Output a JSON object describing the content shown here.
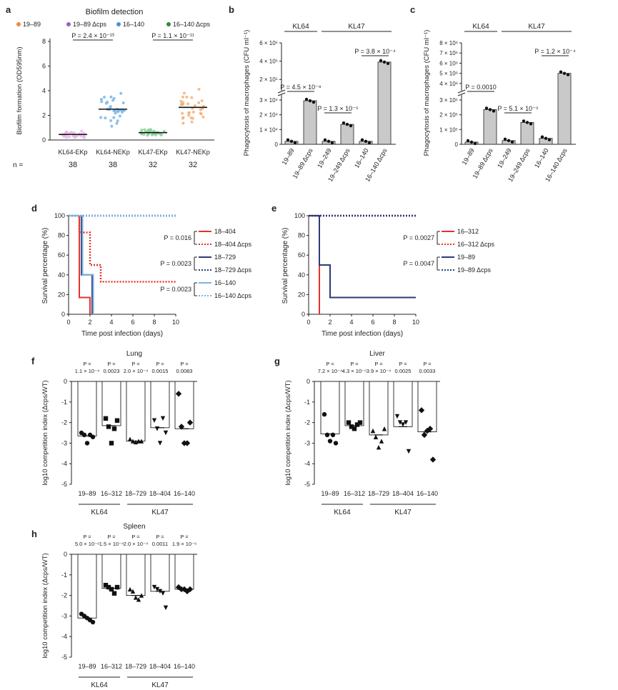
{
  "panels": {
    "a": {
      "letter": "a",
      "title": "Biofilm detection",
      "legend": [
        {
          "label": "19–89",
          "color": "#f08a3c"
        },
        {
          "label": "19–89 Δcps",
          "color": "#a05cc8"
        },
        {
          "label": "16–140",
          "color": "#4f8fd8"
        },
        {
          "label": "16–140 Δcps",
          "color": "#2e8b3e"
        }
      ],
      "ylabel": "Biofilm formation (OD595nm)",
      "yticks": [
        "0",
        "2",
        "4",
        "6",
        "8"
      ],
      "ylim": [
        0,
        8
      ],
      "categories": [
        "KL64-EKp",
        "KL64-NEKp",
        "KL47-EKp",
        "KL47-NEKp"
      ],
      "means": [
        0.45,
        2.5,
        0.6,
        2.65
      ],
      "n_label": "n =",
      "n_values": [
        "38",
        "38",
        "32",
        "32"
      ],
      "pvalues": [
        "P = 2.4 × 10⁻¹³",
        "P = 1.1 × 10⁻¹¹"
      ],
      "colors": {
        "KL64-EKp": "#e7b6e6",
        "KL64-NEKp": "#7ab6e6",
        "KL47-EKp": "#8dd39b",
        "KL47-NEKp": "#f3b27a"
      }
    },
    "b": {
      "letter": "b",
      "ylabel": "Phagocytosis of macrophages (CFU ml⁻¹)",
      "yticks": [
        "0",
        "1 × 10⁴",
        "2 × 10⁴",
        "3 × 10⁴",
        "2 × 10⁵",
        "4 × 10⁵",
        "6 × 10⁵"
      ],
      "groups": [
        "KL64",
        "KL47"
      ],
      "categories": [
        "19–89",
        "19–89 Δcps",
        "19–249",
        "19–249 Δcps",
        "16–140",
        "16–140 Δcps"
      ],
      "values": [
        2000,
        29500,
        2000,
        13500,
        2000,
        390000
      ],
      "pvalues": [
        "P = 4.5 × 10⁻⁸",
        "P = 1.3 × 10⁻⁵",
        "P = 3.8 × 10⁻⁴"
      ]
    },
    "c": {
      "letter": "c",
      "ylabel": "Phagocytosis of macrophages (CFU ml⁻¹)",
      "yticks": [
        "0",
        "1 × 10⁵",
        "2 × 10⁵",
        "3 × 10⁵",
        "4 × 10⁶",
        "5 × 10⁶",
        "6 × 10⁶",
        "7 × 10⁶",
        "8 × 10⁶"
      ],
      "groups": [
        "KL64",
        "KL47"
      ],
      "categories": [
        "19–89",
        "19–89 Δcps",
        "19–249",
        "19–249 Δcps",
        "16–140",
        "16–140 Δcps"
      ],
      "values": [
        15000,
        235000,
        25000,
        148000,
        40000,
        5000000
      ],
      "pvalues": [
        "P = 0.0010",
        "P = 5.1 × 10⁻⁵",
        "P = 1.2 × 10⁻⁴"
      ]
    },
    "d": {
      "letter": "d",
      "ylabel": "Survival percentage (%)",
      "xlabel": "Time post infection (days)",
      "xticks": [
        "0",
        "2",
        "4",
        "6",
        "8",
        "10"
      ],
      "yticks": [
        "0",
        "20",
        "40",
        "60",
        "80",
        "100"
      ],
      "series": [
        {
          "name": "18–404",
          "color": "#e8312a",
          "dashed": false,
          "x": [
            0,
            1,
            1,
            2,
            2
          ],
          "y": [
            100,
            100,
            17,
            17,
            0
          ]
        },
        {
          "name": "18–404 Δcps",
          "color": "#e8312a",
          "dashed": true,
          "x": [
            0,
            1,
            1,
            2,
            2,
            3,
            3,
            10
          ],
          "y": [
            100,
            100,
            83,
            83,
            50,
            50,
            33,
            33
          ]
        },
        {
          "name": "18–729",
          "color": "#2b3a7a",
          "dashed": false,
          "x": [
            0,
            1.2,
            1.2,
            2.2,
            2.2
          ],
          "y": [
            100,
            100,
            40,
            40,
            0
          ]
        },
        {
          "name": "18–729 Δcps",
          "color": "#2b3a7a",
          "dashed": true,
          "x": [
            0,
            10
          ],
          "y": [
            100,
            100
          ]
        },
        {
          "name": "16–140",
          "color": "#7fb1e3",
          "dashed": false,
          "x": [
            0,
            1.3,
            1.3,
            2.3,
            2.3
          ],
          "y": [
            100,
            100,
            40,
            40,
            0
          ]
        },
        {
          "name": "16–140 Δcps",
          "color": "#7fb1e3",
          "dashed": true,
          "x": [
            0,
            10
          ],
          "y": [
            100,
            100
          ]
        }
      ],
      "pvalues": [
        "P = 0.016",
        "P = 0.0023",
        "P = 0.0023"
      ]
    },
    "e": {
      "letter": "e",
      "ylabel": "Survival percentage (%)",
      "xlabel": "Time post infection (days)",
      "xticks": [
        "0",
        "2",
        "4",
        "6",
        "8",
        "10"
      ],
      "yticks": [
        "0",
        "20",
        "40",
        "60",
        "80",
        "100"
      ],
      "series": [
        {
          "name": "16–312",
          "color": "#e8312a",
          "dashed": false,
          "x": [
            0,
            1,
            1
          ],
          "y": [
            100,
            100,
            0
          ]
        },
        {
          "name": "16–312 Δcps",
          "color": "#e8312a",
          "dashed": true,
          "x": [
            0,
            10
          ],
          "y": [
            100,
            100
          ]
        },
        {
          "name": "19–89",
          "color": "#2b3a7a",
          "dashed": false,
          "x": [
            0,
            1,
            1,
            2,
            2,
            10
          ],
          "y": [
            100,
            100,
            50,
            50,
            17,
            17
          ]
        },
        {
          "name": "19–89 Δcps",
          "color": "#2b3a7a",
          "dashed": true,
          "x": [
            0,
            10
          ],
          "y": [
            100,
            100
          ]
        }
      ],
      "pvalues": [
        "P = 0.0027",
        "P = 0.0047"
      ]
    },
    "f": {
      "letter": "f",
      "title": "Lung",
      "ylabel": "log10 competition index (Δcps/WT)",
      "yticks": [
        "0",
        "-1",
        "-2",
        "-3",
        "-4",
        "-5"
      ],
      "categories": [
        "19–89",
        "16–312",
        "18–729",
        "18–404",
        "16–140"
      ],
      "groups": [
        "KL64",
        "KL47"
      ],
      "means": [
        -2.65,
        -2.15,
        -2.9,
        -2.25,
        -2.3
      ],
      "p_prefix": "P =",
      "pvalues": [
        "1.1 × 10⁻⁴",
        "0.0023",
        "2.0 × 10⁻⁴",
        "0.0015",
        "0.0083"
      ],
      "points": [
        [
          -2.5,
          -2.6,
          -3.0,
          -2.6,
          -2.7
        ],
        [
          -1.8,
          -2.2,
          -3.0,
          -2.3,
          -1.9
        ],
        [
          -2.8,
          -2.9,
          -2.95,
          -2.9,
          -2.9
        ],
        [
          -1.9,
          -2.3,
          -3.0,
          -1.8,
          -2.5
        ],
        [
          -0.6,
          -2.2,
          -3.0,
          -3.0,
          -2.0
        ]
      ],
      "markers": [
        "circle",
        "square",
        "triangle",
        "triangle-down",
        "diamond"
      ]
    },
    "g": {
      "letter": "g",
      "title": "Liver",
      "ylabel": "log10 competition index (Δcps/WT)",
      "yticks": [
        "0",
        "-1",
        "-2",
        "-3",
        "-4",
        "-5"
      ],
      "categories": [
        "19–89",
        "16–312",
        "18–729",
        "18–404",
        "16–140"
      ],
      "groups": [
        "KL64",
        "KL47"
      ],
      "means": [
        -2.55,
        -2.15,
        -2.6,
        -2.2,
        -2.45
      ],
      "p_prefix": "P =",
      "pvalues": [
        "7.2 × 10⁻⁴",
        "4.3 × 10⁻⁵",
        "3.9 × 10⁻⁴",
        "0.0025",
        "0.0033"
      ],
      "points": [
        [
          -1.6,
          -2.6,
          -2.9,
          -2.6,
          -3.0
        ],
        [
          -2.0,
          -2.2,
          -2.3,
          -2.1,
          -2.0
        ],
        [
          -2.4,
          -2.7,
          -3.2,
          -2.9,
          -2.3
        ],
        [
          -1.7,
          -2.0,
          -2.1,
          -2.0,
          -3.4
        ],
        [
          -1.4,
          -2.6,
          -2.4,
          -2.3,
          -3.8
        ]
      ],
      "markers": [
        "circle",
        "square",
        "triangle",
        "triangle-down",
        "diamond"
      ]
    },
    "h": {
      "letter": "h",
      "title": "Spleen",
      "ylabel": "log10 competition index (Δcps/WT)",
      "yticks": [
        "0",
        "-1",
        "-2",
        "-3",
        "-4",
        "-5"
      ],
      "categories": [
        "19–89",
        "16–312",
        "18–729",
        "18–404",
        "16–140"
      ],
      "groups": [
        "KL64",
        "KL47"
      ],
      "means": [
        -3.1,
        -1.65,
        -2.0,
        -1.8,
        -1.7
      ],
      "p_prefix": "P =",
      "pvalues": [
        "5.0 × 10⁻⁶",
        "1.5 × 10⁻⁴",
        "2.0 × 10⁻⁴",
        "0.0011",
        "1.9 × 10⁻⁶"
      ],
      "points": [
        [
          -2.9,
          -3.0,
          -3.1,
          -3.2,
          -3.3
        ],
        [
          -1.5,
          -1.6,
          -1.7,
          -1.9,
          -1.6
        ],
        [
          -1.7,
          -1.8,
          -2.1,
          -2.2,
          -2.0
        ],
        [
          -1.6,
          -1.7,
          -1.8,
          -1.9,
          -2.6
        ],
        [
          -1.6,
          -1.7,
          -1.7,
          -1.8,
          -1.7
        ]
      ],
      "markers": [
        "circle",
        "square",
        "triangle",
        "triangle-down",
        "diamond"
      ]
    }
  },
  "chart_data": [
    {
      "type": "scatter",
      "title": "Biofilm detection",
      "ylabel": "Biofilm formation (OD595nm)",
      "categories": [
        "KL64-EKp",
        "KL64-NEKp",
        "KL47-EKp",
        "KL47-NEKp"
      ],
      "means": [
        0.45,
        2.5,
        0.6,
        2.65
      ],
      "ylim": [
        0,
        8
      ]
    },
    {
      "type": "bar",
      "ylabel": "Phagocytosis of macrophages (CFU ml⁻¹)",
      "categories": [
        "19–89",
        "19–89 Δcps",
        "19–249",
        "19–249 Δcps",
        "16–140",
        "16–140 Δcps"
      ],
      "values": [
        2000,
        29500,
        2000,
        13500,
        2000,
        390000
      ]
    },
    {
      "type": "bar",
      "ylabel": "Phagocytosis of macrophages (CFU ml⁻¹)",
      "categories": [
        "19–89",
        "19–89 Δcps",
        "19–249",
        "19–249 Δcps",
        "16–140",
        "16–140 Δcps"
      ],
      "values": [
        15000,
        235000,
        25000,
        148000,
        40000,
        5000000
      ]
    },
    {
      "type": "line",
      "xlabel": "Time post infection (days)",
      "ylabel": "Survival percentage (%)",
      "series": [
        "18–404",
        "18–404 Δcps",
        "18–729",
        "18–729 Δcps",
        "16–140",
        "16–140 Δcps"
      ]
    },
    {
      "type": "line",
      "xlabel": "Time post infection (days)",
      "ylabel": "Survival percentage (%)",
      "series": [
        "16–312",
        "16–312 Δcps",
        "19–89",
        "19–89 Δcps"
      ]
    },
    {
      "type": "bar",
      "title": "Lung",
      "categories": [
        "19–89",
        "16–312",
        "18–729",
        "18–404",
        "16–140"
      ],
      "values": [
        -2.65,
        -2.15,
        -2.9,
        -2.25,
        -2.3
      ]
    },
    {
      "type": "bar",
      "title": "Liver",
      "categories": [
        "19–89",
        "16–312",
        "18–729",
        "18–404",
        "16–140"
      ],
      "values": [
        -2.55,
        -2.15,
        -2.6,
        -2.2,
        -2.45
      ]
    },
    {
      "type": "bar",
      "title": "Spleen",
      "categories": [
        "19–89",
        "16–312",
        "18–729",
        "18–404",
        "16–140"
      ],
      "values": [
        -3.1,
        -1.65,
        -2.0,
        -1.8,
        -1.7
      ]
    }
  ]
}
